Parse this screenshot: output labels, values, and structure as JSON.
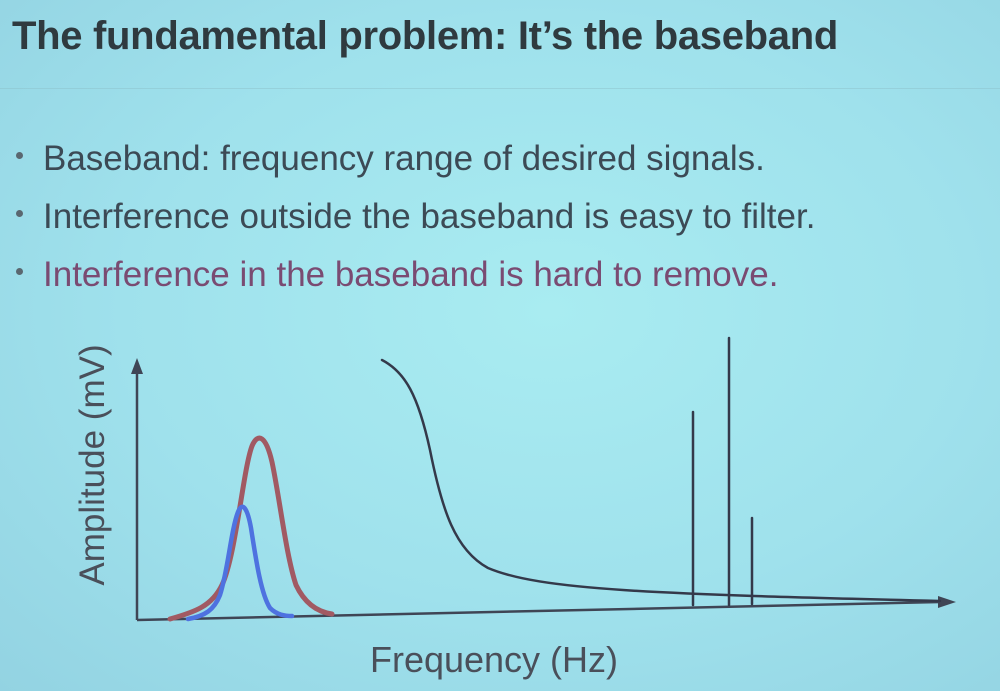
{
  "slide": {
    "title": "The fundamental problem: It’s the baseband",
    "bullets": [
      "Baseband: frequency range of desired signals.",
      "Interference outside the baseband is easy to filter.",
      "Interference in the baseband is hard to remove."
    ]
  },
  "chart_data": {
    "type": "line",
    "xlabel": "Frequency (Hz)",
    "ylabel": "Amplitude (mV)",
    "series": [
      {
        "color": "#a15a63"
      },
      {
        "color": "#4e72e0"
      },
      {
        "color": "#34394a"
      }
    ],
    "grid": false
  }
}
